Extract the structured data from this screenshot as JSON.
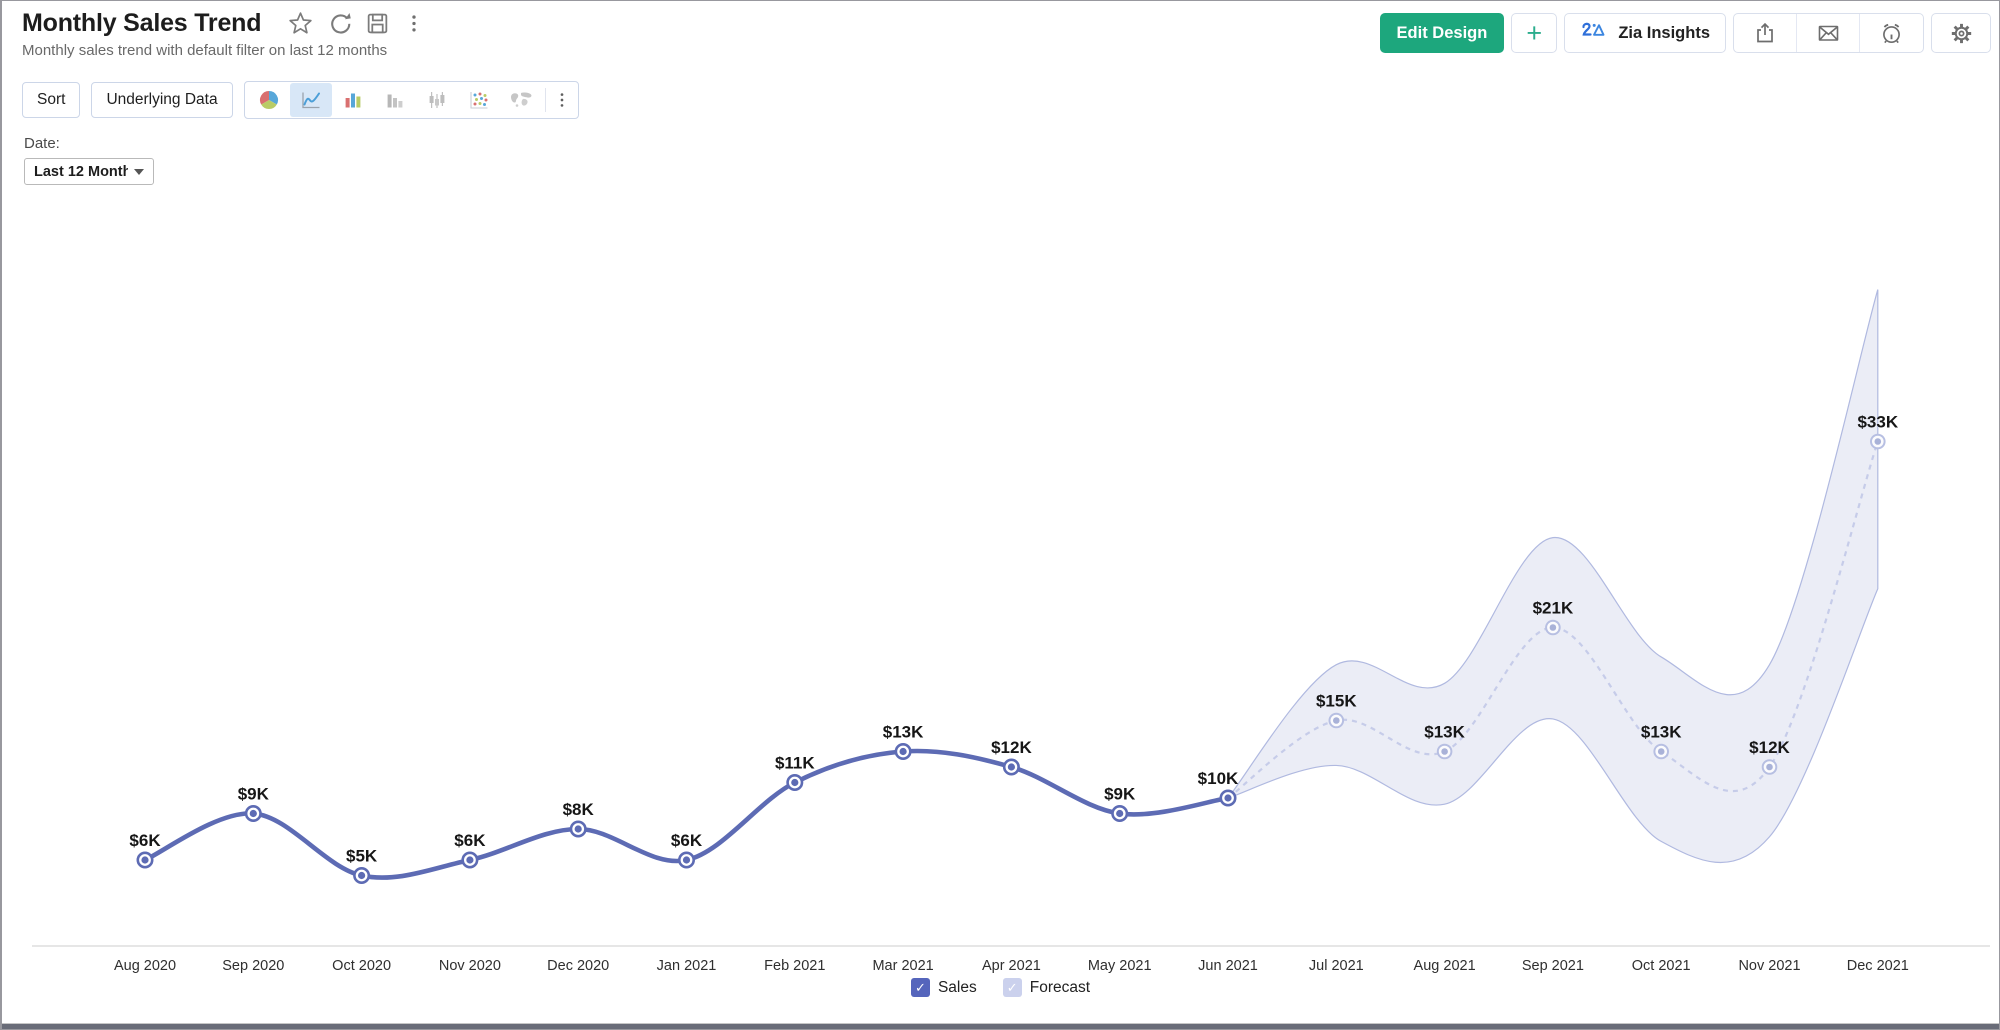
{
  "window": {
    "title": "Monthly Sales Trend",
    "subtitle": "Monthly sales trend with default filter on last 12 months"
  },
  "header_icons": [
    "favorite-star",
    "refresh",
    "save",
    "more-options"
  ],
  "header_actions": {
    "edit_design": "Edit Design",
    "add": "+",
    "zia": "Zia Insights",
    "action_icons": [
      "export",
      "email",
      "schedule",
      "settings"
    ]
  },
  "toolbar": {
    "sort": "Sort",
    "underlying_data": "Underlying Data",
    "chart_types": [
      "pie",
      "line",
      "bar",
      "bar-gray",
      "bar-candlestick",
      "scatter",
      "map",
      "more"
    ],
    "selected_chart_type": "line"
  },
  "filter": {
    "label": "Date:",
    "value": "Last 12 Month..."
  },
  "legend": {
    "items": [
      {
        "label": "Sales",
        "color": "#5565BC",
        "checked": true
      },
      {
        "label": "Forecast",
        "color": "#CBD1ED",
        "checked": true
      }
    ]
  },
  "colors": {
    "sales_line": "#5D6BB4",
    "forecast_line": "#C6CCE9",
    "forecast_marker_ring": "#B7BFE2",
    "forecast_marker_dot": "#A9B2D8",
    "band_fill": "#E9EBF5",
    "band_edge": "#B0B9E0",
    "accent_green": "#1DA77D",
    "zia_blue": "#2E6FD9"
  },
  "chart_data": {
    "type": "line",
    "title": "Monthly Sales Trend",
    "value_prefix": "$",
    "value_unit": "K",
    "ylim": [
      0,
      45
    ],
    "grid": false,
    "legend_position": "bottom-center",
    "categories": [
      "Aug 2020",
      "Sep 2020",
      "Oct 2020",
      "Nov 2020",
      "Dec 2020",
      "Jan 2021",
      "Feb 2021",
      "Mar 2021",
      "Apr 2021",
      "May 2021",
      "Jun 2021",
      "Jul 2021",
      "Aug 2021",
      "Sep 2021",
      "Oct 2021",
      "Nov 2021",
      "Dec 2021"
    ],
    "series": [
      {
        "name": "Sales",
        "style": "solid",
        "values": [
          6,
          9,
          5,
          6,
          8,
          6,
          11,
          13,
          12,
          9,
          10,
          null,
          null,
          null,
          null,
          null,
          null
        ],
        "labels": [
          "$6K",
          "$9K",
          "$5K",
          "$6K",
          "$8K",
          "$6K",
          "$11K",
          "$13K",
          "$12K",
          "$9K",
          "$10K",
          null,
          null,
          null,
          null,
          null,
          null
        ]
      },
      {
        "name": "Forecast",
        "style": "dashed",
        "values": [
          null,
          null,
          null,
          null,
          null,
          null,
          null,
          null,
          null,
          null,
          10,
          15,
          13,
          21,
          13,
          12,
          33
        ],
        "labels": [
          null,
          null,
          null,
          null,
          null,
          null,
          null,
          null,
          null,
          null,
          null,
          "$15K",
          "$13K",
          "$21K",
          "$13K",
          "$12K",
          "$33K"
        ],
        "band": {
          "start_index": 10,
          "upper": [
            10,
            18.6,
            17.4,
            26.8,
            19.1,
            18.6,
            42.8
          ],
          "lower": [
            10,
            12.1,
            9.6,
            15.1,
            7.2,
            7.5,
            23.5
          ]
        }
      }
    ]
  }
}
